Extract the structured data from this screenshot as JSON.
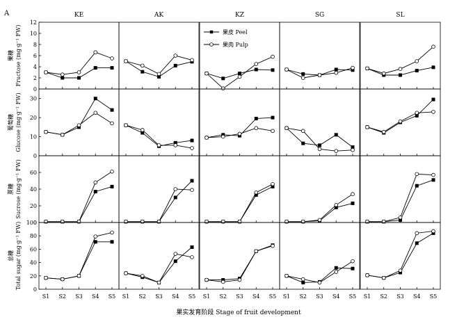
{
  "panel_letter": "A",
  "x_axis_label": "果实发育阶段  Stage of fruit development",
  "stages": [
    "S1",
    "S2",
    "S3",
    "S4",
    "S5"
  ],
  "legend": {
    "peel": "果皮 Peel",
    "pulp": "果肉 Pulp"
  },
  "chart_data": {
    "type": "line",
    "columns": [
      "KE",
      "AK",
      "KZ",
      "SG",
      "SL"
    ],
    "rows": [
      {
        "key": "fructose",
        "ylabel_cn": "果糖",
        "ylabel_en": "Fructose (mg·g⁻¹ FW)",
        "ylim": [
          0,
          12
        ],
        "yticks": [
          0,
          2,
          4,
          6,
          8,
          10,
          12
        ],
        "panels": [
          {
            "peel": [
              3.0,
              2.0,
              2.0,
              3.8,
              3.8
            ],
            "pulp": [
              3.0,
              2.6,
              3.0,
              6.6,
              5.5
            ]
          },
          {
            "peel": [
              5.0,
              3.1,
              2.2,
              4.2,
              4.9
            ],
            "pulp": [
              5.0,
              4.2,
              2.7,
              6.0,
              5.2
            ]
          },
          {
            "peel": [
              2.8,
              1.9,
              2.8,
              3.5,
              3.4
            ],
            "pulp": [
              2.8,
              0.1,
              2.2,
              4.5,
              5.8
            ]
          },
          {
            "peel": [
              3.5,
              2.7,
              2.5,
              3.5,
              3.4
            ],
            "pulp": [
              3.5,
              2.0,
              2.5,
              2.9,
              3.8
            ]
          },
          {
            "peel": [
              3.7,
              2.5,
              2.5,
              3.3,
              3.9
            ],
            "pulp": [
              3.7,
              2.8,
              3.6,
              5.0,
              7.6
            ]
          }
        ]
      },
      {
        "key": "glucose",
        "ylabel_cn": "葡萄糖",
        "ylabel_en": "Glucose (mg·g⁻¹ FW)",
        "ylim": [
          0,
          35
        ],
        "yticks": [
          0,
          10,
          20,
          30
        ],
        "panels": [
          {
            "peel": [
              12.5,
              11.0,
              15.0,
              30.0,
              24.0
            ],
            "pulp": [
              12.5,
              11.0,
              16.0,
              22.5,
              17.0
            ]
          },
          {
            "peel": [
              16.0,
              12.0,
              5.0,
              6.8,
              8.0
            ],
            "pulp": [
              16.0,
              13.5,
              5.5,
              5.5,
              4.0
            ]
          },
          {
            "peel": [
              9.5,
              11.0,
              10.5,
              19.5,
              20.0
            ],
            "pulp": [
              9.5,
              10.0,
              11.5,
              14.5,
              13.0
            ]
          },
          {
            "peel": [
              14.5,
              6.5,
              5.5,
              11.0,
              4.5
            ],
            "pulp": [
              14.5,
              13.0,
              3.5,
              2.5,
              3.0
            ]
          },
          {
            "peel": [
              15.0,
              12.0,
              17.5,
              21.0,
              29.5
            ],
            "pulp": [
              15.0,
              12.5,
              18.0,
              22.5,
              23.0
            ]
          }
        ]
      },
      {
        "key": "sucrose",
        "ylabel_cn": "蔗糖",
        "ylabel_en": "Sucrose (mg·g⁻¹ FW)",
        "ylim": [
          0,
          80
        ],
        "yticks": [
          0,
          20,
          40,
          60
        ],
        "panels": [
          {
            "peel": [
              1.0,
              1.0,
              1.0,
              37.0,
              43.0
            ],
            "pulp": [
              1.0,
              1.0,
              1.0,
              48.0,
              61.0
            ]
          },
          {
            "peel": [
              1.0,
              1.0,
              1.0,
              30.0,
              50.0
            ],
            "pulp": [
              1.0,
              1.0,
              1.0,
              40.0,
              39.0
            ]
          },
          {
            "peel": [
              1.0,
              1.0,
              1.0,
              33.0,
              43.0
            ],
            "pulp": [
              1.0,
              1.0,
              1.0,
              36.0,
              46.0
            ]
          },
          {
            "peel": [
              1.0,
              1.0,
              2.0,
              18.0,
              23.0
            ],
            "pulp": [
              1.0,
              1.0,
              3.0,
              21.0,
              34.0
            ]
          },
          {
            "peel": [
              1.0,
              1.0,
              3.0,
              44.0,
              51.0
            ],
            "pulp": [
              1.0,
              1.0,
              6.0,
              58.0,
              57.0
            ]
          }
        ]
      },
      {
        "key": "total_sugar",
        "ylabel_cn": "总糖",
        "ylabel_en": "Total sugar (mg·g⁻¹ FW)",
        "ylim": [
          0,
          100
        ],
        "yticks": [
          0,
          20,
          40,
          60,
          80,
          100
        ],
        "panels": [
          {
            "peel": [
              17,
              15,
              20,
              71,
              71
            ],
            "pulp": [
              17,
              15,
              20,
              79,
              85
            ]
          },
          {
            "peel": [
              24,
              18,
              10,
              42,
              63
            ],
            "pulp": [
              24,
              20,
              10,
              53,
              48
            ]
          },
          {
            "peel": [
              14,
              14,
              16,
              57,
              66
            ],
            "pulp": [
              14,
              11,
              14,
              57,
              65
            ]
          },
          {
            "peel": [
              20,
              10,
              11,
              32,
              31
            ],
            "pulp": [
              20,
              15,
              10,
              26,
              42
            ]
          },
          {
            "peel": [
              21,
              17,
              25,
              69,
              84
            ],
            "pulp": [
              21,
              17,
              28,
              84,
              87
            ]
          }
        ]
      }
    ]
  }
}
